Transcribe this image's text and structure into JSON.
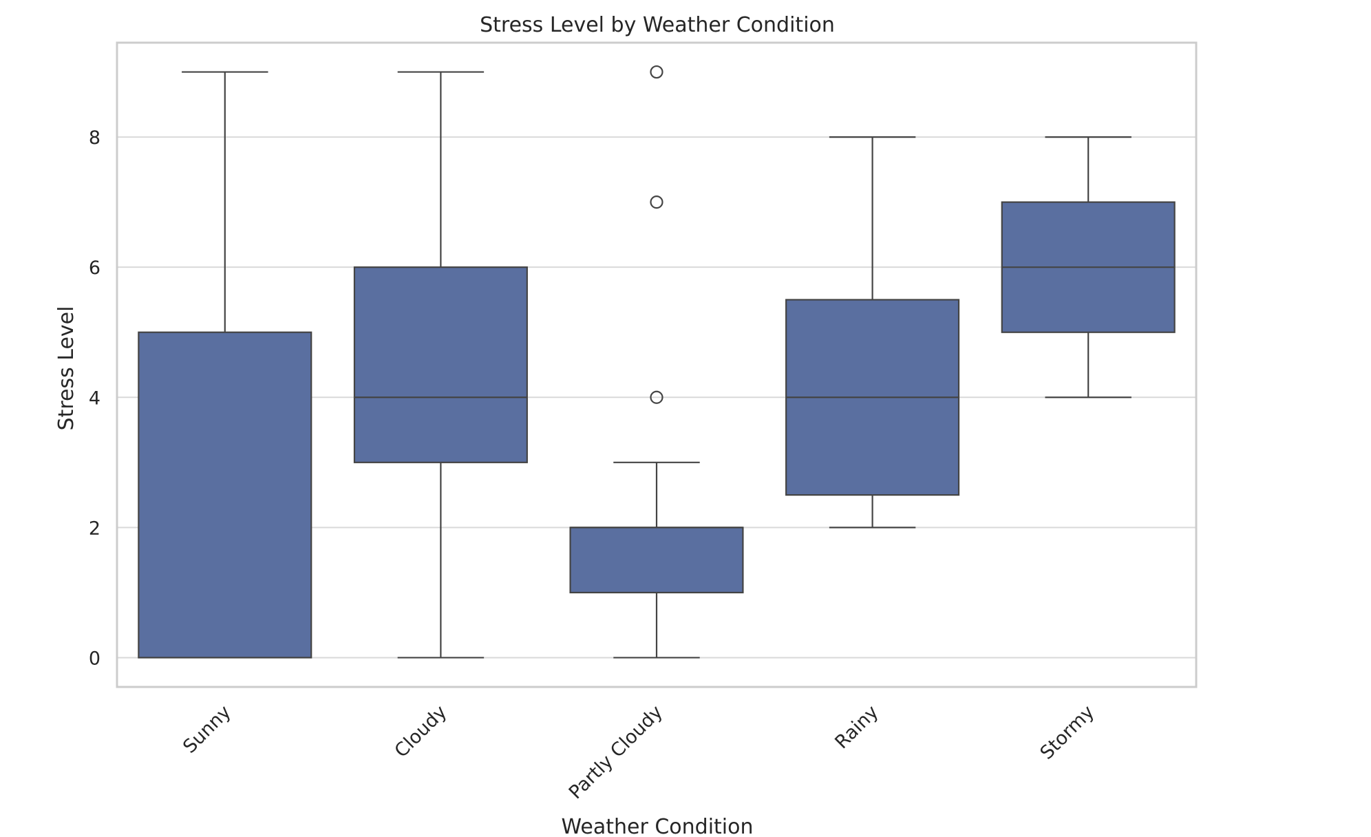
{
  "chart_data": {
    "type": "box",
    "title": "Stress Level by Weather Condition",
    "xlabel": "Weather Condition",
    "ylabel": "Stress Level",
    "categories": [
      "Sunny",
      "Cloudy",
      "Partly Cloudy",
      "Rainy",
      "Stormy"
    ],
    "ylim": [
      -0.45,
      9.45
    ],
    "yticks": [
      0,
      2,
      4,
      6,
      8
    ],
    "grid": true,
    "box_color": "#5a6fa0",
    "line_color": "#444444",
    "grid_color": "#d9d9d9",
    "frame_color": "#cccccc",
    "boxes": [
      {
        "category": "Sunny",
        "whisker_low": 0,
        "q1": 0,
        "median": 0,
        "q3": 5,
        "whisker_high": 9,
        "outliers": []
      },
      {
        "category": "Cloudy",
        "whisker_low": 0,
        "q1": 3,
        "median": 4,
        "q3": 6,
        "whisker_high": 9,
        "outliers": []
      },
      {
        "category": "Partly Cloudy",
        "whisker_low": 0,
        "q1": 1,
        "median": 2,
        "q3": 2,
        "whisker_high": 3,
        "outliers": [
          4,
          7,
          9
        ]
      },
      {
        "category": "Rainy",
        "whisker_low": 2,
        "q1": 2.5,
        "median": 4,
        "q3": 5.5,
        "whisker_high": 8,
        "outliers": []
      },
      {
        "category": "Stormy",
        "whisker_low": 4,
        "q1": 5,
        "median": 6,
        "q3": 7,
        "whisker_high": 8,
        "outliers": []
      }
    ]
  }
}
